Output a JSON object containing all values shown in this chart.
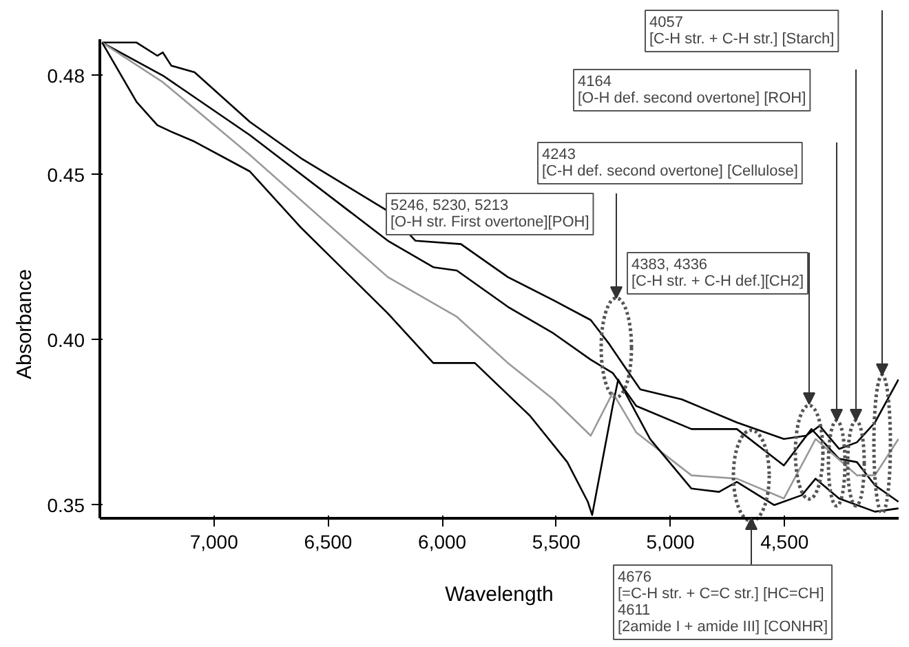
{
  "chart_data": {
    "type": "line",
    "xlabel": "Wavelength",
    "ylabel": "Absorbance",
    "xlim": [
      7500,
      4000
    ],
    "ylim": [
      0.346,
      0.491
    ],
    "xticks": [
      {
        "value": 7000,
        "label": "7,000"
      },
      {
        "value": 6500,
        "label": "6,500"
      },
      {
        "value": 6000,
        "label": "6,000"
      },
      {
        "value": 5500,
        "label": "5,500"
      },
      {
        "value": 5000,
        "label": "5,000"
      },
      {
        "value": 4500,
        "label": "4,500"
      }
    ],
    "yticks": [
      0.35,
      {
        "value": 0.4,
        "label": "0.40"
      },
      0.45,
      {
        "value": 0.48,
        "label": "0.48"
      }
    ],
    "series": [
      {
        "color": "#000000",
        "x": [
          7490,
          7339,
          7248,
          7224,
          7187,
          7085,
          6843,
          6619,
          6238,
          6117,
          5918,
          5712,
          5513,
          5349,
          5271,
          5192,
          5132,
          4950,
          4709,
          4503,
          4406,
          4346,
          4261,
          4183,
          4104,
          4001
        ],
        "values": [
          0.49,
          0.49,
          0.486,
          0.487,
          0.483,
          0.481,
          0.466,
          0.455,
          0.439,
          0.43,
          0.429,
          0.419,
          0.412,
          0.406,
          0.399,
          0.391,
          0.385,
          0.382,
          0.375,
          0.37,
          0.371,
          0.374,
          0.367,
          0.369,
          0.375,
          0.388
        ]
      },
      {
        "color": "#000000",
        "x": [
          7490,
          7224,
          6843,
          6238,
          6039,
          5936,
          5712,
          5513,
          5349,
          5253,
          5150,
          4908,
          4709,
          4503,
          4382,
          4261,
          4183,
          4104,
          4001
        ],
        "values": [
          0.49,
          0.48,
          0.462,
          0.43,
          0.422,
          0.421,
          0.41,
          0.402,
          0.394,
          0.39,
          0.38,
          0.373,
          0.373,
          0.362,
          0.373,
          0.364,
          0.363,
          0.356,
          0.351
        ]
      },
      {
        "color": "#999999",
        "x": [
          7490,
          7224,
          6843,
          6238,
          5936,
          5712,
          5513,
          5349,
          5253,
          5150,
          4908,
          4709,
          4503,
          4364,
          4183,
          4104,
          4001
        ],
        "values": [
          0.49,
          0.478,
          0.456,
          0.419,
          0.407,
          0.393,
          0.382,
          0.371,
          0.384,
          0.372,
          0.359,
          0.358,
          0.352,
          0.37,
          0.359,
          0.359,
          0.37
        ]
      },
      {
        "color": "#000000",
        "x": [
          7490,
          7339,
          7248,
          7187,
          7085,
          6843,
          6619,
          6238,
          6039,
          5936,
          5857,
          5615,
          5452,
          5362,
          5343,
          5253,
          5229,
          5089,
          4908,
          4787,
          4709,
          4545,
          4424,
          4364,
          4261,
          4104,
          4001
        ],
        "values": [
          0.49,
          0.472,
          0.465,
          0.463,
          0.46,
          0.451,
          0.434,
          0.408,
          0.393,
          0.393,
          0.393,
          0.377,
          0.363,
          0.351,
          0.347,
          0.38,
          0.388,
          0.37,
          0.355,
          0.354,
          0.357,
          0.35,
          0.353,
          0.358,
          0.352,
          0.348,
          0.349
        ]
      }
    ],
    "annotations": [
      "5246, 5230, 5213\n[O-H str. First overtone][POH]",
      "4383, 4336\n[C-H str. + C-H def.][CH2]",
      "4243\n[C-H def. second overtone] [Cellulose]",
      "4164\n[O-H def. second overtone] [ROH]",
      "4057\n[C-H str. + C-H str.] [Starch]",
      "4676\n[=C-H str. + C=C str.] [HC=CH]\n4611\n[2amide I + amide III] [CONHR]"
    ]
  }
}
